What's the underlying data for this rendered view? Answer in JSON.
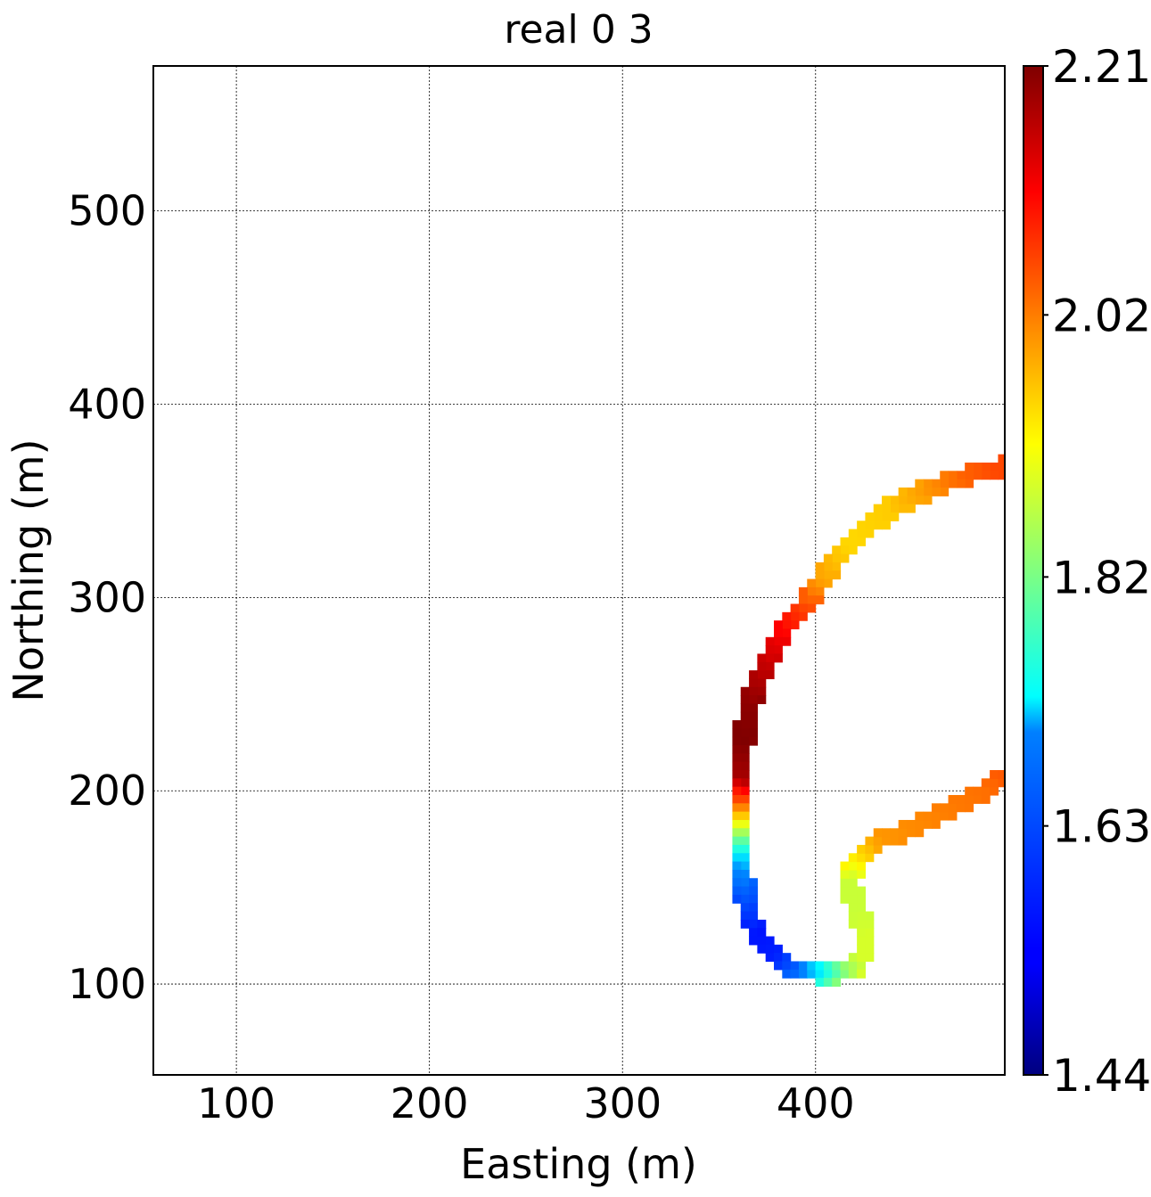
{
  "chart_data": {
    "type": "heatmap",
    "title": "real 0 3",
    "xlabel": "Easting (m)",
    "ylabel": "Northing (m)",
    "xlim": [
      57,
      498
    ],
    "ylim": [
      53,
      575
    ],
    "xticks": [
      100,
      200,
      300,
      400
    ],
    "yticks": [
      100,
      200,
      300,
      400,
      500
    ],
    "xtick_labels": [
      "100",
      "200",
      "300",
      "400"
    ],
    "ytick_labels": [
      "100",
      "200",
      "300",
      "400",
      "500"
    ],
    "grid": true,
    "colormap": "jet",
    "colorbar": {
      "min": 1.44,
      "max": 2.21,
      "ticks": [
        2.21,
        2.02,
        1.82,
        1.63,
        1.44
      ],
      "tick_labels": [
        "2.21",
        "2.02",
        "1.82",
        "1.63",
        "1.44"
      ]
    },
    "band_width_m": 10,
    "path_points": [
      {
        "x": 497,
        "y": 367,
        "value": 2.06
      },
      {
        "x": 480,
        "y": 364,
        "value": 2.04
      },
      {
        "x": 460,
        "y": 357,
        "value": 2.0
      },
      {
        "x": 440,
        "y": 347,
        "value": 1.96
      },
      {
        "x": 420,
        "y": 330,
        "value": 1.95
      },
      {
        "x": 405,
        "y": 312,
        "value": 1.99
      },
      {
        "x": 393,
        "y": 294,
        "value": 2.08
      },
      {
        "x": 381,
        "y": 280,
        "value": 2.13
      },
      {
        "x": 373,
        "y": 263,
        "value": 2.17
      },
      {
        "x": 367,
        "y": 248,
        "value": 2.2
      },
      {
        "x": 363,
        "y": 230,
        "value": 2.21
      },
      {
        "x": 362,
        "y": 210,
        "value": 2.18
      },
      {
        "x": 362,
        "y": 192,
        "value": 1.98
      },
      {
        "x": 362,
        "y": 178,
        "value": 1.8
      },
      {
        "x": 362,
        "y": 163,
        "value": 1.64
      },
      {
        "x": 363,
        "y": 148,
        "value": 1.6
      },
      {
        "x": 368,
        "y": 130,
        "value": 1.55
      },
      {
        "x": 376,
        "y": 117,
        "value": 1.56
      },
      {
        "x": 388,
        "y": 108,
        "value": 1.62
      },
      {
        "x": 400,
        "y": 106,
        "value": 1.74
      },
      {
        "x": 412,
        "y": 106,
        "value": 1.84
      },
      {
        "x": 422,
        "y": 110,
        "value": 1.89
      },
      {
        "x": 427,
        "y": 122,
        "value": 1.89
      },
      {
        "x": 423,
        "y": 136,
        "value": 1.88
      },
      {
        "x": 418,
        "y": 150,
        "value": 1.88
      },
      {
        "x": 420,
        "y": 162,
        "value": 1.94
      },
      {
        "x": 430,
        "y": 173,
        "value": 2.0
      },
      {
        "x": 448,
        "y": 180,
        "value": 2.01
      },
      {
        "x": 466,
        "y": 188,
        "value": 2.02
      },
      {
        "x": 484,
        "y": 198,
        "value": 2.03
      },
      {
        "x": 497,
        "y": 206,
        "value": 2.05
      }
    ]
  }
}
